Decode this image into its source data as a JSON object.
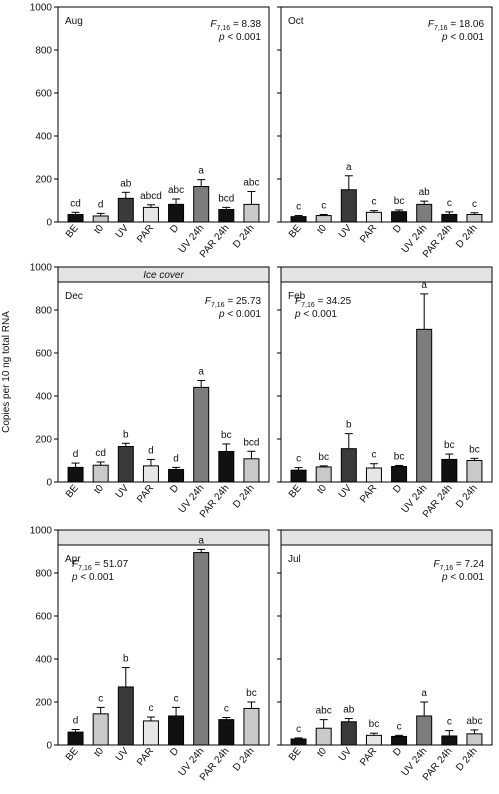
{
  "y_axis_label": "Copies per 10 ng total RNA",
  "categories": [
    "BE",
    "t0",
    "UV",
    "PAR",
    "D",
    "UV 24h",
    "PAR 24h",
    "D 24h"
  ],
  "bar_colors": [
    "#111111",
    "#c9c9c9",
    "#3a3a3a",
    "#e6e6e6",
    "#111111",
    "#7d7d7d",
    "#111111",
    "#c9c9c9"
  ],
  "chart_data": [
    {
      "type": "bar",
      "title": "Aug",
      "ylim": [
        0,
        1000
      ],
      "yticks": [
        0,
        200,
        400,
        600,
        800,
        1000
      ],
      "banner": "",
      "stat_prefix": "F",
      "stat_sub": "7,16",
      "stat_value": " = 8.38",
      "p_text": "< 0.001",
      "stat_pos": "top-right",
      "values": [
        35,
        28,
        110,
        68,
        82,
        165,
        58,
        82
      ],
      "errors": [
        10,
        12,
        28,
        12,
        25,
        32,
        10,
        60
      ],
      "letters": [
        "cd",
        "d",
        "ab",
        "abcd",
        "abc",
        "a",
        "bcd",
        "abc"
      ]
    },
    {
      "type": "bar",
      "title": "Oct",
      "ylim": [
        0,
        1000
      ],
      "yticks": [
        0,
        200,
        400,
        600,
        800,
        1000
      ],
      "banner": "",
      "stat_prefix": "F",
      "stat_sub": "7,16",
      "stat_value": " = 18.06",
      "p_text": "< 0.001",
      "stat_pos": "top-right",
      "values": [
        25,
        30,
        150,
        45,
        48,
        82,
        35,
        35
      ],
      "errors": [
        5,
        5,
        65,
        8,
        8,
        15,
        12,
        8
      ],
      "letters": [
        "c",
        "c",
        "a",
        "c",
        "bc",
        "ab",
        "c",
        "c"
      ]
    },
    {
      "type": "bar",
      "title": "Dec",
      "ylim": [
        0,
        1000
      ],
      "yticks": [
        0,
        200,
        400,
        600,
        800,
        1000
      ],
      "banner": "Ice cover",
      "stat_prefix": "F",
      "stat_sub": "7,16",
      "stat_value": " = 25.73",
      "p_text": "< 0.001",
      "stat_pos": "top-right",
      "values": [
        68,
        78,
        165,
        75,
        58,
        440,
        142,
        108
      ],
      "errors": [
        20,
        15,
        15,
        30,
        10,
        32,
        35,
        35
      ],
      "letters": [
        "d",
        "cd",
        "b",
        "d",
        "d",
        "a",
        "bc",
        "bcd"
      ]
    },
    {
      "type": "bar",
      "title": "Feb",
      "ylim": [
        0,
        1000
      ],
      "yticks": [
        0,
        200,
        400,
        600,
        800,
        1000
      ],
      "banner": " ",
      "stat_prefix": "F",
      "stat_sub": "7,16",
      "stat_value": " = 34.25",
      "p_text": "< 0.001",
      "stat_pos": "top-left",
      "values": [
        55,
        70,
        155,
        65,
        72,
        710,
        105,
        100
      ],
      "errors": [
        12,
        5,
        70,
        20,
        5,
        165,
        25,
        10
      ],
      "letters": [
        "c",
        "bc",
        "b",
        "c",
        "bc",
        "a",
        "bc",
        "bc"
      ]
    },
    {
      "type": "bar",
      "title": "Apr",
      "ylim": [
        0,
        1000
      ],
      "yticks": [
        0,
        200,
        400,
        600,
        800,
        1000
      ],
      "banner": " ",
      "stat_prefix": "F",
      "stat_sub": "7,16",
      "stat_value": " = 51.07",
      "p_text": "< 0.001",
      "stat_pos": "top-left",
      "values": [
        60,
        145,
        270,
        112,
        135,
        895,
        118,
        170
      ],
      "errors": [
        12,
        30,
        90,
        18,
        40,
        15,
        10,
        30
      ],
      "letters": [
        "d",
        "c",
        "b",
        "c",
        "c",
        "a",
        "c",
        "bc"
      ]
    },
    {
      "type": "bar",
      "title": "Jul",
      "ylim": [
        0,
        1000
      ],
      "yticks": [
        0,
        200,
        400,
        600,
        800,
        1000
      ],
      "banner": " ",
      "stat_prefix": "F",
      "stat_sub": "7,16",
      "stat_value": " = 7.24",
      "p_text": "< 0.001",
      "stat_pos": "top-right",
      "values": [
        28,
        78,
        108,
        45,
        40,
        135,
        42,
        52
      ],
      "errors": [
        5,
        40,
        15,
        10,
        5,
        65,
        25,
        18
      ],
      "letters": [
        "c",
        "abc",
        "ab",
        "bc",
        "c",
        "a",
        "c",
        "abc"
      ]
    }
  ]
}
